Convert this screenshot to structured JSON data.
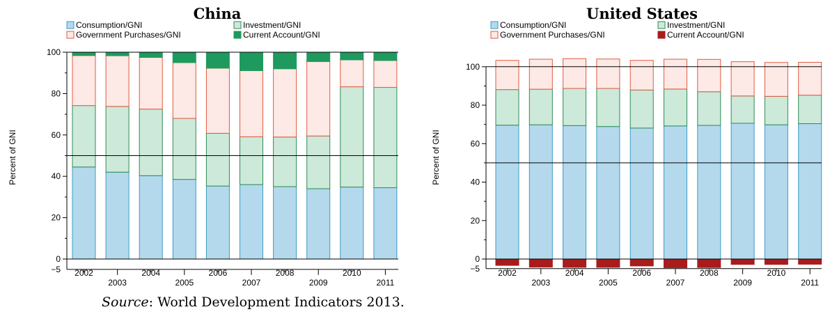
{
  "chart_data": [
    {
      "type": "bar",
      "stacked": true,
      "title": "China",
      "ylabel": "Percent of GNI",
      "ylim": [
        -5,
        100
      ],
      "yticks": [
        0,
        20,
        40,
        60,
        80,
        100
      ],
      "extra_ytick_label": "−5",
      "refline": 50,
      "legend_position": "top",
      "categories": [
        "2002",
        "2003",
        "2004",
        "2005",
        "2006",
        "2007",
        "2008",
        "2009",
        "2010",
        "2011"
      ],
      "series": [
        {
          "name": "Consumption/GNI",
          "color": "#b4d9ec",
          "edge": "#3a9bc5",
          "values": [
            44.5,
            42,
            40.3,
            38.5,
            35.3,
            36,
            35,
            34,
            34.8,
            34.5
          ]
        },
        {
          "name": "Investment/GNI",
          "color": "#cde9d9",
          "edge": "#2e8b57",
          "values": [
            29.7,
            31.8,
            32.2,
            29.5,
            25.5,
            23.1,
            24,
            25.5,
            48.5,
            48.5
          ]
        },
        {
          "name": "Government Purchases/GNI",
          "color": "#fde9e6",
          "edge": "#e05a3f",
          "values": [
            24.2,
            24.5,
            25,
            27,
            31.5,
            32,
            33,
            36,
            13,
            13
          ]
        },
        {
          "name": "Current Account/GNI",
          "color": "#1f9a5e",
          "edge": "#1f9a5e",
          "values": [
            1.6,
            1.7,
            2.5,
            5,
            7.7,
            8.9,
            8,
            4.5,
            3.7,
            4
          ]
        }
      ]
    },
    {
      "type": "bar",
      "stacked": true,
      "title": "United States",
      "ylabel": "Percent of GNI",
      "ylim": [
        -5,
        105
      ],
      "yticks": [
        0,
        20,
        40,
        60,
        80,
        100
      ],
      "extra_ytick_label": "−5",
      "refline": 50,
      "legend_position": "top",
      "categories": [
        "2002",
        "2003",
        "2004",
        "2005",
        "2006",
        "2007",
        "2008",
        "2009",
        "2010",
        "2011"
      ],
      "series": [
        {
          "name": "Consumption/GNI",
          "color": "#b4d9ec",
          "edge": "#3a9bc5",
          "values": [
            69.6,
            69.8,
            69.4,
            68.9,
            68.1,
            69.2,
            69.5,
            70.6,
            69.8,
            70.4
          ]
        },
        {
          "name": "Investment/GNI",
          "color": "#cde9d9",
          "edge": "#2e8b57",
          "values": [
            18.5,
            18.5,
            19.3,
            19.8,
            19.8,
            19.2,
            17.5,
            14.2,
            14.8,
            14.8
          ]
        },
        {
          "name": "Government Purchases/GNI",
          "color": "#fde9e6",
          "edge": "#e05a3f",
          "values": [
            15.2,
            15.6,
            15.5,
            15.3,
            15.4,
            15.5,
            16.8,
            17.8,
            17.6,
            17.1
          ]
        },
        {
          "name": "Current Account/GNI",
          "color": "#a81c1c",
          "edge": "#a81c1c",
          "values": [
            -3.3,
            -4.2,
            -4.3,
            -4.3,
            -3.6,
            -4.5,
            -4.4,
            -2.8,
            -2.8,
            -2.7
          ]
        }
      ]
    }
  ],
  "source": {
    "label": "Source",
    "text": ": World Development Indicators 2013."
  }
}
